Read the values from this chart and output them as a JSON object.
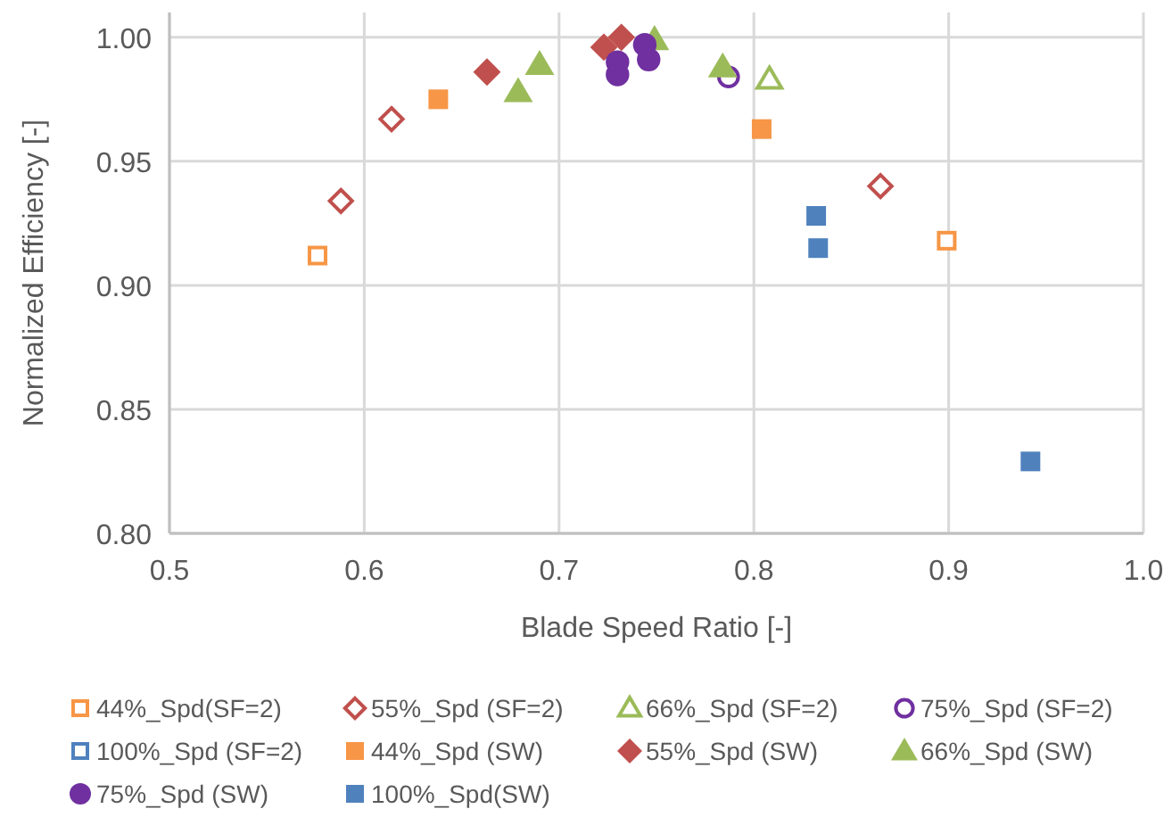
{
  "chart_data": {
    "type": "scatter",
    "xlabel": "Blade Speed Ratio [-]",
    "ylabel": "Normalized Efficiency [-]",
    "xlim": [
      0.5,
      1.0
    ],
    "xticks": [
      0.5,
      0.6,
      0.7,
      0.8,
      0.9,
      {
        "value": 1.0,
        "label": "1.0"
      }
    ],
    "ylim": [
      0.8,
      1.01
    ],
    "yticks": [
      {
        "value": 0.8,
        "label": "0.80"
      },
      {
        "value": 0.85,
        "label": "0.85"
      },
      {
        "value": 0.9,
        "label": "0.90"
      },
      {
        "value": 0.95,
        "label": "0.95"
      },
      {
        "value": 1.0,
        "label": "1.00"
      }
    ],
    "grid": true,
    "legend": "bottom",
    "series": [
      {
        "name": "44%_Spd(SF=2)",
        "color": "#f79646",
        "marker": "square",
        "x": [
          0.576,
          0.899
        ],
        "values": [
          0.912,
          0.918
        ]
      },
      {
        "name": "55%_Spd (SF=2)",
        "color": "#c0504d",
        "marker": "diamond",
        "x": [
          0.588,
          0.614,
          0.865
        ],
        "values": [
          0.934,
          0.967,
          0.94
        ]
      },
      {
        "name": "66%_Spd (SF=2)",
        "color": "#9bbb59",
        "marker": "triangle",
        "x": [
          0.808
        ],
        "values": [
          0.983
        ]
      },
      {
        "name": "75%_Spd (SF=2)",
        "color": "#7030a0",
        "marker": "circle",
        "x": [
          0.787
        ],
        "values": [
          0.984
        ]
      },
      {
        "name": "100%_Spd (SF=2)",
        "color": "#4f81bd",
        "marker": "square"
      },
      {
        "name": "44%_Spd (SW)",
        "color": "#f79646",
        "marker": "square",
        "x": [
          0.638,
          0.804
        ],
        "values": [
          0.975,
          0.963
        ]
      },
      {
        "name": "55%_Spd (SW)",
        "color": "#c0504d",
        "marker": "diamond",
        "x": [
          0.663,
          0.723,
          0.732
        ],
        "values": [
          0.986,
          0.996,
          1.0
        ]
      },
      {
        "name": "66%_Spd (SW)",
        "color": "#9bbb59",
        "marker": "triangle",
        "x": [
          0.679,
          0.69,
          0.749,
          0.784
        ],
        "values": [
          0.978,
          0.989,
          0.999,
          0.988
        ]
      },
      {
        "name": "75%_Spd (SW)",
        "color": "#7030a0",
        "marker": "circle",
        "x": [
          0.73,
          0.73,
          0.744,
          0.746
        ],
        "values": [
          0.985,
          0.99,
          0.997,
          0.991
        ]
      },
      {
        "name": "100%_Spd(SW)",
        "color": "#4f81bd",
        "marker": "square",
        "x": [
          0.832,
          0.833,
          0.942
        ],
        "values": [
          0.928,
          0.915,
          0.829
        ]
      }
    ]
  }
}
